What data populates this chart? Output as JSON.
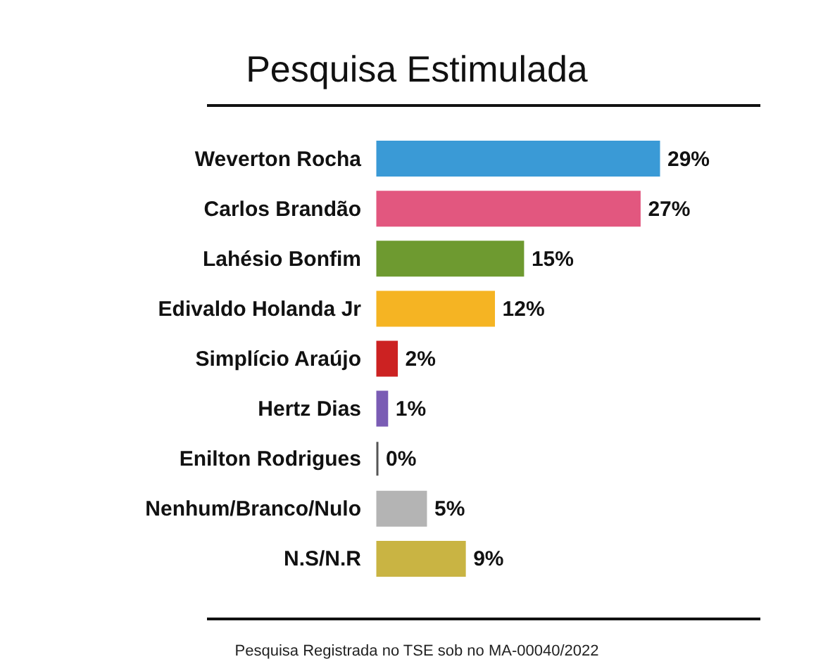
{
  "chart_data": {
    "type": "bar",
    "orientation": "horizontal",
    "title": "Pesquisa Estimulada",
    "categories": [
      "Weverton Rocha",
      "Carlos Brandão",
      "Lahésio Bonfim",
      "Edivaldo Holanda Jr",
      "Simplício Araújo",
      "Hertz Dias",
      "Enilton Rodrigues",
      "Nenhum/Branco/Nulo",
      "N.S/N.R"
    ],
    "values": [
      29,
      27,
      15,
      12,
      2,
      1,
      0,
      5,
      9
    ],
    "value_labels": [
      "29%",
      "27%",
      "15%",
      "12%",
      "2%",
      "1%",
      "0%",
      "5%",
      "9%"
    ],
    "colors": [
      "#3a9ad6",
      "#e2577f",
      "#6e9a30",
      "#f5b423",
      "#cc2222",
      "#7a5cb4",
      "#555555",
      "#b4b4b4",
      "#c9b443"
    ],
    "annotations": [
      "Pesquisa Registrada no TSE sob no MA-00040/2022"
    ]
  }
}
